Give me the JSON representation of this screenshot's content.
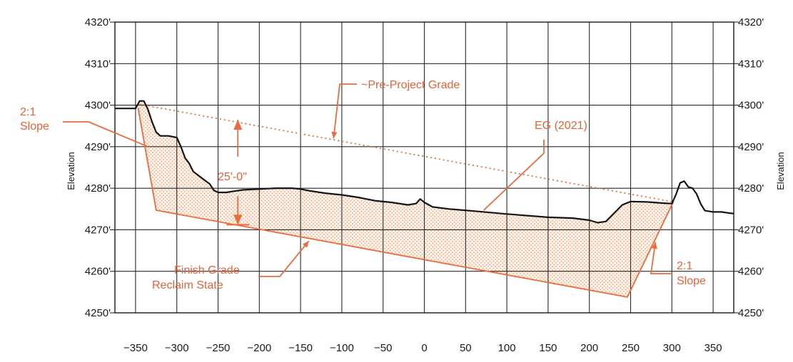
{
  "chart_data": {
    "type": "line",
    "title": "",
    "xlabel": "",
    "ylabel": "Elevation",
    "xlim": [
      -375,
      375
    ],
    "ylim": [
      4250,
      4320
    ],
    "x_ticks": [
      -350,
      -300,
      -250,
      -200,
      -150,
      -100,
      -50,
      0,
      50,
      100,
      150,
      200,
      250,
      300,
      350
    ],
    "x_tick_labels": [
      "−350",
      "−300",
      "−250",
      "−200",
      "−150",
      "−100",
      "−50",
      "0",
      "50",
      "100",
      "150",
      "200",
      "250",
      "300",
      "350"
    ],
    "y_ticks": [
      4250,
      4260,
      4270,
      4280,
      4290,
      4300,
      4310,
      4320
    ],
    "y_tick_labels": [
      "4250'",
      "4260'",
      "4270'",
      "4280'",
      "4290'",
      "4300'",
      "4310'",
      "4320'"
    ],
    "grid": true,
    "colors": {
      "annotation": "#ec6a3c",
      "ground": "#151515",
      "fill": "#f3b48a"
    },
    "series": [
      {
        "name": "EG (2021)",
        "x": [
          -375,
          -350,
          -345,
          -340,
          -335,
          -330,
          -325,
          -320,
          -310,
          -300,
          -295,
          -290,
          -285,
          -280,
          -270,
          -260,
          -255,
          -250,
          -240,
          -230,
          -220,
          -200,
          -180,
          -160,
          -150,
          -140,
          -120,
          -100,
          -80,
          -60,
          -40,
          -20,
          -10,
          -5,
          0,
          10,
          30,
          60,
          100,
          150,
          180,
          200,
          210,
          220,
          230,
          240,
          250,
          270,
          290,
          300,
          305,
          310,
          315,
          320,
          325,
          330,
          335,
          340,
          350,
          360,
          370,
          375
        ],
        "y": [
          4299.2,
          4299.2,
          4301,
          4301,
          4299,
          4296,
          4293.5,
          4292.6,
          4292.6,
          4292.2,
          4290,
          4287.3,
          4286,
          4284,
          4282.5,
          4281,
          4279.5,
          4279,
          4279,
          4279.3,
          4279.6,
          4279.8,
          4280,
          4280,
          4279.8,
          4279.4,
          4278.8,
          4278.4,
          4277.8,
          4277,
          4276.6,
          4276,
          4276.3,
          4277.4,
          4276.6,
          4275.5,
          4275,
          4274.5,
          4273.8,
          4273,
          4272.8,
          4272.3,
          4271.7,
          4272,
          4274,
          4276,
          4276.8,
          4276.7,
          4276.4,
          4276.3,
          4278.5,
          4281.3,
          4281.7,
          4280.3,
          4280,
          4278.6,
          4276.2,
          4274.6,
          4274.3,
          4274.3,
          4274,
          4273.9
        ]
      },
      {
        "name": "~Pre-Project Grade",
        "x": [
          -345,
          302
        ],
        "y": [
          4300.2,
          4276.7
        ]
      },
      {
        "name": "Finish Grade Reclaim State",
        "x": [
          -347,
          -325,
          246,
          302
        ],
        "y": [
          4299.4,
          4274.7,
          4253.8,
          4276.8
        ]
      }
    ],
    "annotations": [
      {
        "text_lines": [
          "2:1",
          "Slope"
        ],
        "anchor": [
          -335,
          4290
        ]
      },
      {
        "text_lines": [
          "~Pre-Project Grade"
        ],
        "anchor": [
          -110,
          4292
        ]
      },
      {
        "text_lines": [
          "EG (2021)"
        ],
        "anchor": [
          72,
          4274.7
        ]
      },
      {
        "text_lines": [
          "25'-0\""
        ],
        "dimension_x": -226,
        "from_y": 4296.5,
        "to_y": 4271.2
      },
      {
        "text_lines": [
          "Finish Grade",
          "Reclaim State"
        ],
        "anchor": [
          -140,
          4267.3
        ]
      },
      {
        "text_lines": [
          "2:1",
          "Slope"
        ],
        "anchor": [
          280,
          4267
        ]
      }
    ]
  }
}
